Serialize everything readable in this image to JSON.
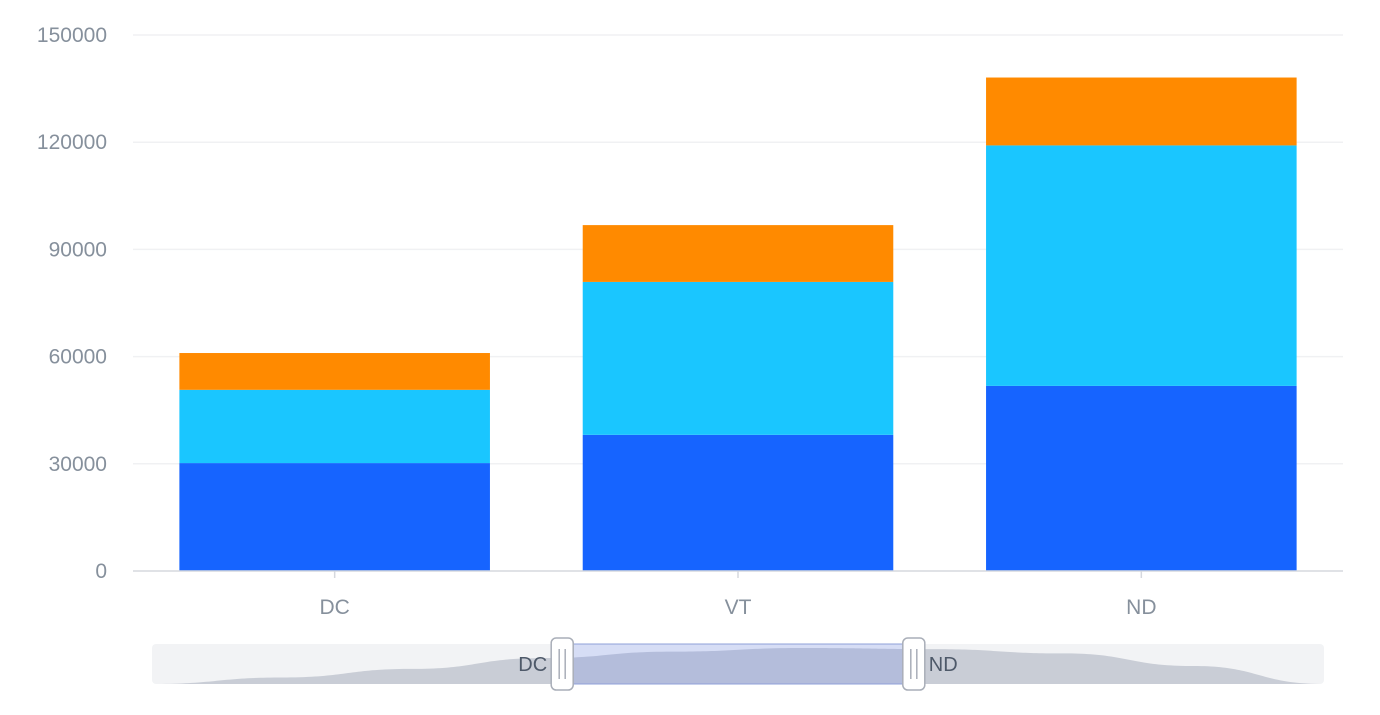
{
  "chart_data": {
    "type": "bar",
    "stacked": true,
    "categories": [
      "DC",
      "VT",
      "ND"
    ],
    "series": [
      {
        "values": [
          30200,
          38100,
          51800
        ],
        "color": "#1664ff"
      },
      {
        "values": [
          20500,
          42800,
          67300
        ],
        "color": "#1ac6ff"
      },
      {
        "values": [
          10300,
          15900,
          19000
        ],
        "color": "#ff8a00"
      }
    ],
    "ylim": [
      0,
      150000
    ],
    "yticks": [
      0,
      30000,
      60000,
      90000,
      120000,
      150000
    ],
    "ytick_labels": [
      "0",
      "30000",
      "60000",
      "90000",
      "120000",
      "150000"
    ],
    "grid": true,
    "legend": "none",
    "title": "",
    "xlabel": "",
    "ylabel": ""
  },
  "data_zoom": {
    "start_label": "DC",
    "end_label": "ND",
    "window_start_fraction": 0.35,
    "window_end_fraction": 0.65,
    "overview_profile": [
      0.0,
      0.18,
      0.42,
      0.72,
      0.9,
      1.0,
      0.97,
      0.85,
      0.5,
      0.0
    ]
  },
  "colors": {
    "grid": "#f0f1f3",
    "axis": "#d5d8de",
    "tick_text": "#86909c",
    "zoom_track": "#f2f3f5",
    "zoom_area": "#c9cdd6",
    "zoom_window": "#d6ddf5",
    "zoom_window_area": "#b4bddb",
    "zoom_handle_border": "#a9aeb8"
  }
}
